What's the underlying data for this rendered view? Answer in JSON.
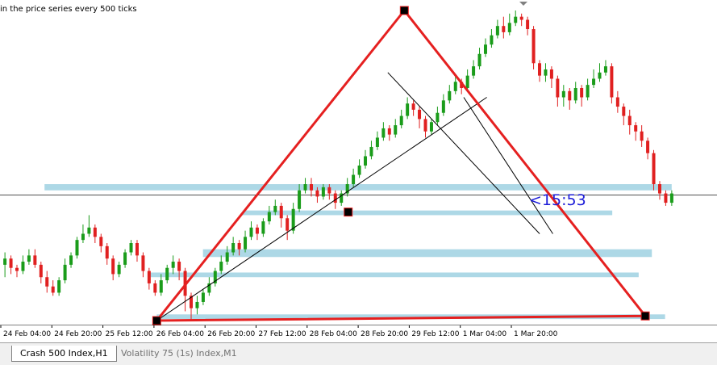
{
  "header": {
    "info_text": "in the price series every 500 ticks"
  },
  "countdown": {
    "text": "<15:53",
    "color": "#1c1cd8"
  },
  "tabs": [
    {
      "label": "Crash 500 Index,H1",
      "active": true
    },
    {
      "label": "Volatility 75 (1s) Index,M1",
      "active": false
    }
  ],
  "colors": {
    "bull": "#1a9c1a",
    "bear": "#e02020",
    "pattern": "#e52020",
    "zone": "#add8e6",
    "trendline": "#000000"
  },
  "chart_data": {
    "type": "candlestick",
    "title": "",
    "x_tick_labels": [
      "24 Feb 04:00",
      "24 Feb 20:00",
      "25 Feb 12:00",
      "26 Feb 04:00",
      "26 Feb 20:00",
      "27 Feb 12:00",
      "28 Feb 04:00",
      "28 Feb 20:00",
      "29 Feb 12:00",
      "1 Mar 04:00",
      "1 Mar 20:00"
    ],
    "y_range": [
      0,
      100
    ],
    "pattern": {
      "A": [
        2,
        0
      ],
      "B": [
        39.5,
        100
      ],
      "C": [
        76,
        1.5
      ],
      "midpoint": [
        31,
        35
      ]
    },
    "zones": [
      {
        "x_start": -15,
        "x_end": 80,
        "y_top": 44,
        "y_bottom": 42
      },
      {
        "x_start": 15,
        "x_end": 71,
        "y_top": 35.5,
        "y_bottom": 34
      },
      {
        "x_start": 9,
        "x_end": 77,
        "y_top": 23,
        "y_bottom": 20.5
      },
      {
        "x_start": 1,
        "x_end": 75,
        "y_top": 15.5,
        "y_bottom": 14
      },
      {
        "x_start": 2,
        "x_end": 79,
        "y_top": 2,
        "y_bottom": 0.5
      }
    ],
    "current_price_level": 40.5,
    "trendlines": [
      [
        [
          2,
          0
        ],
        [
          52,
          72
        ]
      ],
      [
        [
          37,
          80
        ],
        [
          60,
          28
        ]
      ],
      [
        [
          48.5,
          72
        ],
        [
          62,
          28
        ]
      ]
    ],
    "candles": [
      [
        18,
        20,
        14,
        22
      ],
      [
        20,
        17,
        15,
        21
      ],
      [
        17,
        16,
        14,
        18
      ],
      [
        16,
        19,
        15,
        21
      ],
      [
        19,
        21,
        18,
        23
      ],
      [
        21,
        18,
        17,
        23
      ],
      [
        18,
        14,
        12,
        19
      ],
      [
        14,
        11,
        9,
        16
      ],
      [
        11,
        9,
        8,
        13
      ],
      [
        9,
        13,
        8,
        14
      ],
      [
        13,
        18,
        12,
        20
      ],
      [
        18,
        21,
        17,
        22
      ],
      [
        21,
        26,
        20,
        27
      ],
      [
        26,
        28,
        25,
        31
      ],
      [
        28,
        30,
        27,
        34
      ],
      [
        30,
        27,
        25,
        31
      ],
      [
        27,
        24,
        22,
        28
      ],
      [
        24,
        20,
        18,
        25
      ],
      [
        20,
        15,
        13,
        21
      ],
      [
        15,
        18,
        14,
        19
      ],
      [
        18,
        22,
        17,
        23
      ],
      [
        22,
        25,
        21,
        26
      ],
      [
        25,
        21,
        19,
        26
      ],
      [
        21,
        16,
        14,
        22
      ],
      [
        16,
        12,
        10,
        17
      ],
      [
        12,
        9,
        8,
        13
      ],
      [
        9,
        13,
        8,
        15
      ],
      [
        13,
        17,
        12,
        18
      ],
      [
        17,
        19,
        15,
        21
      ],
      [
        19,
        16,
        13,
        20
      ],
      [
        16,
        8,
        3,
        17
      ],
      [
        8,
        4,
        0,
        9
      ],
      [
        4,
        6,
        2,
        8
      ],
      [
        6,
        9,
        5,
        10
      ],
      [
        9,
        12,
        8,
        14
      ],
      [
        12,
        16,
        11,
        17
      ],
      [
        16,
        19,
        15,
        21
      ],
      [
        19,
        22,
        18,
        24
      ],
      [
        22,
        25,
        21,
        27
      ],
      [
        25,
        23,
        21,
        26
      ],
      [
        23,
        27,
        22,
        29
      ],
      [
        27,
        30,
        26,
        32
      ],
      [
        30,
        28,
        26,
        31
      ],
      [
        28,
        32,
        27,
        33
      ],
      [
        32,
        35,
        31,
        37
      ],
      [
        35,
        37,
        34,
        39
      ],
      [
        37,
        33,
        30,
        38
      ],
      [
        33,
        29,
        26,
        34
      ],
      [
        29,
        36,
        28,
        38
      ],
      [
        36,
        42,
        35,
        44
      ],
      [
        42,
        44,
        41,
        46
      ],
      [
        44,
        42,
        40,
        46
      ],
      [
        42,
        40,
        38,
        43
      ],
      [
        40,
        43,
        39,
        44
      ],
      [
        43,
        41,
        39,
        44
      ],
      [
        41,
        38,
        36,
        42
      ],
      [
        38,
        41,
        37,
        42
      ],
      [
        41,
        44,
        40,
        46
      ],
      [
        44,
        47,
        43,
        49
      ],
      [
        47,
        50,
        46,
        52
      ],
      [
        50,
        53,
        49,
        55
      ],
      [
        53,
        56,
        52,
        58
      ],
      [
        56,
        59,
        55,
        61
      ],
      [
        59,
        62,
        58,
        64
      ],
      [
        62,
        60,
        58,
        63
      ],
      [
        60,
        63,
        59,
        65
      ],
      [
        63,
        66,
        62,
        68
      ],
      [
        66,
        70,
        65,
        72
      ],
      [
        70,
        68,
        66,
        71
      ],
      [
        68,
        65,
        62,
        69
      ],
      [
        65,
        61,
        59,
        66
      ],
      [
        61,
        64,
        60,
        65
      ],
      [
        64,
        67,
        63,
        69
      ],
      [
        67,
        71,
        66,
        73
      ],
      [
        71,
        74,
        70,
        76
      ],
      [
        74,
        77,
        73,
        79
      ],
      [
        77,
        75,
        73,
        78
      ],
      [
        75,
        79,
        74,
        81
      ],
      [
        79,
        82,
        78,
        84
      ],
      [
        82,
        86,
        81,
        88
      ],
      [
        86,
        89,
        85,
        91
      ],
      [
        89,
        92,
        88,
        94
      ],
      [
        92,
        95,
        91,
        97
      ],
      [
        95,
        93,
        91,
        98
      ],
      [
        93,
        96,
        92,
        99
      ],
      [
        96,
        98,
        95,
        100
      ],
      [
        98,
        97,
        95,
        99
      ],
      [
        97,
        94,
        92,
        98
      ],
      [
        94,
        83,
        81,
        95
      ],
      [
        83,
        79,
        77,
        84
      ],
      [
        79,
        81,
        77,
        83
      ],
      [
        81,
        78,
        75,
        82
      ],
      [
        78,
        72,
        69,
        79
      ],
      [
        72,
        74,
        69,
        76
      ],
      [
        74,
        71,
        68,
        75
      ],
      [
        71,
        75,
        70,
        77
      ],
      [
        75,
        72,
        69,
        76
      ],
      [
        72,
        76,
        71,
        78
      ],
      [
        76,
        78,
        75,
        81
      ],
      [
        78,
        80,
        77,
        83
      ],
      [
        80,
        82,
        79,
        84
      ],
      [
        82,
        72,
        70,
        83
      ],
      [
        72,
        69,
        67,
        74
      ],
      [
        69,
        66,
        63,
        70
      ],
      [
        66,
        63,
        60,
        68
      ],
      [
        63,
        61,
        58,
        64
      ],
      [
        61,
        58,
        56,
        63
      ],
      [
        58,
        54,
        52,
        59
      ],
      [
        54,
        44,
        42,
        55
      ],
      [
        44,
        41,
        39,
        45
      ],
      [
        41,
        38,
        37,
        42
      ],
      [
        38,
        41,
        37,
        42
      ]
    ]
  }
}
